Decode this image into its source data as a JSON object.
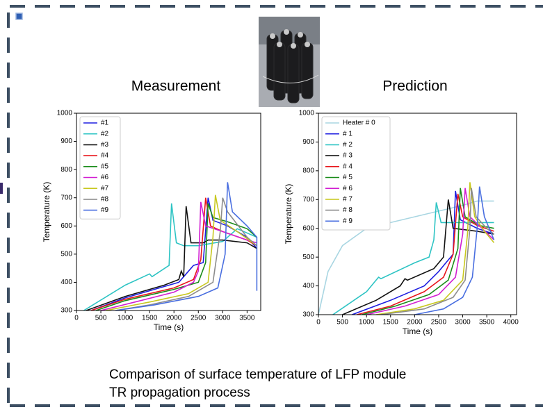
{
  "chart_data": [
    {
      "type": "line",
      "title": "Measurement",
      "xlabel": "Time (s)",
      "ylabel": "Temperature (K)",
      "xlim": [
        0,
        3780
      ],
      "ylim": [
        300,
        1000
      ],
      "xticks": [
        0,
        500,
        1000,
        1500,
        2000,
        2500,
        3000,
        3500
      ],
      "yticks": [
        300,
        400,
        500,
        600,
        700,
        800,
        900,
        1000
      ],
      "legend": "upper-left",
      "series": [
        {
          "name": "#1",
          "color": "#1f1fe0",
          "x": [
            300,
            1000,
            1800,
            2100,
            2250,
            2400,
            2600,
            2700,
            2800,
            3100,
            3500,
            3700
          ],
          "values": [
            300,
            345,
            385,
            400,
            430,
            460,
            470,
            700,
            620,
            600,
            560,
            520
          ]
        },
        {
          "name": "#2",
          "color": "#2ec4c4",
          "x": [
            150,
            1000,
            1500,
            1550,
            1900,
            1950,
            2050,
            2200,
            2500,
            3000,
            3300,
            3700
          ],
          "values": [
            300,
            390,
            430,
            420,
            460,
            680,
            540,
            530,
            530,
            545,
            590,
            560
          ]
        },
        {
          "name": "#3",
          "color": "#111111",
          "x": [
            200,
            1000,
            1800,
            2100,
            2150,
            2200,
            2250,
            2350,
            2600,
            2700,
            3000,
            3500,
            3700
          ],
          "values": [
            300,
            350,
            390,
            410,
            440,
            420,
            670,
            540,
            540,
            550,
            550,
            540,
            520
          ]
        },
        {
          "name": "#4",
          "color": "#e8161b",
          "x": [
            300,
            1000,
            2000,
            2400,
            2550,
            2650,
            2750,
            3000,
            3500,
            3700
          ],
          "values": [
            300,
            340,
            380,
            410,
            480,
            700,
            600,
            580,
            550,
            530
          ]
        },
        {
          "name": "#5",
          "color": "#1a8c1a",
          "x": [
            400,
            1000,
            2000,
            2500,
            2650,
            2700,
            2800,
            3100,
            3500,
            3700
          ],
          "values": [
            300,
            335,
            375,
            400,
            470,
            680,
            630,
            615,
            590,
            560
          ]
        },
        {
          "name": "#6",
          "color": "#d21fd2",
          "x": [
            500,
            1200,
            2000,
            2400,
            2500,
            2550,
            2650,
            3000,
            3500,
            3700
          ],
          "values": [
            300,
            330,
            365,
            400,
            440,
            685,
            600,
            580,
            550,
            540
          ]
        },
        {
          "name": "#7",
          "color": "#c8c820",
          "x": [
            600,
            1500,
            2300,
            2700,
            2800,
            2850,
            2950,
            3300,
            3700
          ],
          "values": [
            300,
            330,
            360,
            400,
            560,
            710,
            620,
            580,
            530
          ]
        },
        {
          "name": "#8",
          "color": "#8c8c8c",
          "x": [
            800,
            1500,
            2300,
            2800,
            2950,
            3000,
            3100,
            3500,
            3700
          ],
          "values": [
            300,
            320,
            350,
            400,
            580,
            700,
            650,
            560,
            530
          ]
        },
        {
          "name": "#9",
          "color": "#4a6fe0",
          "x": [
            800,
            1600,
            2500,
            2900,
            3050,
            3100,
            3200,
            3500,
            3700,
            3700
          ],
          "values": [
            300,
            320,
            350,
            380,
            500,
            755,
            650,
            600,
            560,
            370
          ]
        }
      ]
    },
    {
      "type": "line",
      "title": "Prediction",
      "xlabel": "Time (s)",
      "ylabel": "Temperature (K)",
      "xlim": [
        0,
        4120
      ],
      "ylim": [
        300,
        1000
      ],
      "xticks": [
        0,
        500,
        1000,
        1500,
        2000,
        2500,
        3000,
        3500,
        4000
      ],
      "yticks": [
        300,
        400,
        500,
        600,
        700,
        800,
        900,
        1000
      ],
      "legend": "upper-left",
      "series": [
        {
          "name": "Heater # 0",
          "color": "#a9d6e2",
          "x": [
            0,
            200,
            500,
            1000,
            1500,
            2000,
            2500,
            3000,
            3300,
            3650
          ],
          "values": [
            300,
            450,
            540,
            600,
            620,
            640,
            660,
            680,
            695,
            695
          ]
        },
        {
          "name": "# 1",
          "color": "#1f1fe0",
          "x": [
            700,
            1500,
            2200,
            2500,
            2650,
            2800,
            2850,
            2950,
            3300,
            3650
          ],
          "values": [
            300,
            350,
            400,
            450,
            480,
            510,
            730,
            630,
            600,
            580
          ]
        },
        {
          "name": "# 2",
          "color": "#2ec4c4",
          "x": [
            300,
            1000,
            1200,
            1250,
            1300,
            2000,
            2300,
            2400,
            2450,
            2550,
            3000,
            3650
          ],
          "values": [
            300,
            380,
            420,
            430,
            425,
            480,
            500,
            560,
            690,
            620,
            620,
            620
          ]
        },
        {
          "name": "# 3",
          "color": "#111111",
          "x": [
            500,
            1200,
            1700,
            1800,
            1850,
            2400,
            2600,
            2700,
            2800,
            3300,
            3650
          ],
          "values": [
            300,
            350,
            400,
            425,
            420,
            460,
            500,
            700,
            600,
            590,
            580
          ]
        },
        {
          "name": "# 4",
          "color": "#e8161b",
          "x": [
            800,
            1500,
            2200,
            2600,
            2800,
            2900,
            3000,
            3300,
            3650
          ],
          "values": [
            300,
            330,
            380,
            430,
            510,
            720,
            640,
            610,
            590
          ]
        },
        {
          "name": "# 5",
          "color": "#1a8c1a",
          "x": [
            900,
            1600,
            2300,
            2700,
            2900,
            2950,
            3050,
            3350,
            3650
          ],
          "values": [
            300,
            330,
            370,
            420,
            530,
            740,
            640,
            610,
            600
          ]
        },
        {
          "name": "# 6",
          "color": "#d21fd2",
          "x": [
            1000,
            1800,
            2500,
            2850,
            3000,
            3050,
            3150,
            3400,
            3650
          ],
          "values": [
            300,
            330,
            370,
            430,
            580,
            740,
            640,
            600,
            560
          ]
        },
        {
          "name": "# 7",
          "color": "#c8c820",
          "x": [
            1200,
            2000,
            2600,
            3000,
            3100,
            3150,
            3250,
            3450,
            3650
          ],
          "values": [
            300,
            320,
            350,
            420,
            580,
            760,
            640,
            590,
            550
          ]
        },
        {
          "name": "# 8",
          "color": "#8c8c8c",
          "x": [
            1300,
            2200,
            2800,
            3050,
            3150,
            3180,
            3280,
            3500,
            3650
          ],
          "values": [
            300,
            320,
            360,
            420,
            600,
            740,
            640,
            600,
            580
          ]
        },
        {
          "name": "# 9",
          "color": "#4a6fe0",
          "x": [
            2000,
            2600,
            3000,
            3200,
            3300,
            3350,
            3450,
            3550,
            3650
          ],
          "values": [
            300,
            320,
            360,
            430,
            600,
            745,
            640,
            600,
            560
          ]
        }
      ]
    }
  ],
  "caption": [
    "Comparison of surface temperature of LFP module",
    "TR propagation process"
  ]
}
